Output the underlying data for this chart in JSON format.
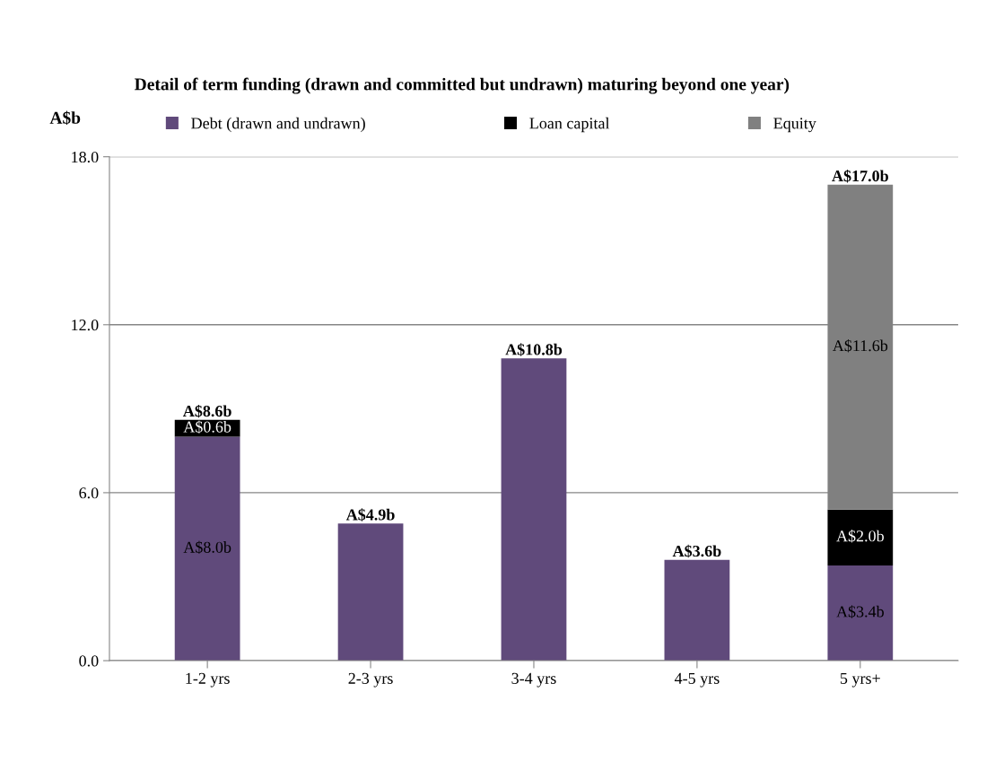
{
  "chart_data": {
    "type": "bar",
    "stacked": true,
    "title": "Detail of term funding (drawn and committed but undrawn) maturing beyond one year)",
    "ylabel": "A$b",
    "categories": [
      "1-2 yrs",
      "2-3 yrs",
      "3-4 yrs",
      "4-5 yrs",
      "5 yrs+"
    ],
    "series": [
      {
        "name": "Debt (drawn and undrawn)",
        "color": "#604a7b",
        "values": [
          8.0,
          4.9,
          10.8,
          3.6,
          3.4
        ],
        "value_labels": [
          "A$8.0b",
          null,
          null,
          null,
          "A$3.4b"
        ]
      },
      {
        "name": "Loan capital",
        "color": "#000000",
        "values": [
          0.6,
          null,
          null,
          null,
          2.0
        ],
        "value_labels": [
          "A$0.6b",
          null,
          null,
          null,
          "A$2.0b"
        ]
      },
      {
        "name": "Equity",
        "color": "#808080",
        "values": [
          null,
          null,
          null,
          null,
          11.6
        ],
        "value_labels": [
          null,
          null,
          null,
          null,
          "A$11.6b"
        ]
      }
    ],
    "totals": [
      "A$8.6b",
      "A$4.9b",
      "A$10.8b",
      "A$3.6b",
      "A$17.0b"
    ],
    "ylim": [
      0,
      18
    ],
    "yticks": [
      {
        "value": 0,
        "label": "0.0"
      },
      {
        "value": 6,
        "label": "6.0"
      },
      {
        "value": 12,
        "label": "12.0"
      },
      {
        "value": 18,
        "label": "18.0"
      }
    ],
    "grid": "y",
    "legend": "top"
  }
}
